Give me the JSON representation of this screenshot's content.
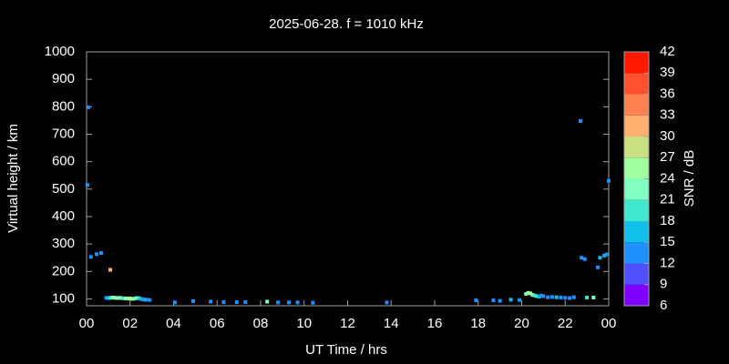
{
  "chart_data": {
    "type": "scatter",
    "title": "2025-06-28. f = 1010 kHz",
    "xlabel": "UT Time / hrs",
    "ylabel": "Virtual height / km",
    "x": [
      0.08,
      0.04,
      0.2,
      0.46,
      0.67,
      1.09,
      0.9,
      1.0,
      1.1,
      1.2,
      1.3,
      1.4,
      1.5,
      1.6,
      1.7,
      1.8,
      1.9,
      2.0,
      2.1,
      2.2,
      2.3,
      2.4,
      2.5,
      2.6,
      2.7,
      2.8,
      2.9,
      4.06,
      4.9,
      5.7,
      6.3,
      6.9,
      7.3,
      8.3,
      8.8,
      9.3,
      9.7,
      10.4,
      13.8,
      17.9,
      18.7,
      19.0,
      19.5,
      19.9,
      20.2,
      20.3,
      20.4,
      20.5,
      20.6,
      20.7,
      20.8,
      20.9,
      21.0,
      21.2,
      21.4,
      21.6,
      21.8,
      22.0,
      22.2,
      22.4,
      22.7,
      22.75,
      22.9,
      23.0,
      23.3,
      23.5,
      23.6,
      23.8,
      23.9,
      24.0
    ],
    "values": [
      798,
      515,
      253,
      263,
      267,
      206,
      104,
      103,
      104,
      105,
      104,
      103,
      104,
      103,
      102,
      102,
      101,
      102,
      100,
      101,
      103,
      103,
      100,
      98,
      97,
      97,
      96,
      87,
      92,
      90,
      88,
      88,
      88,
      90,
      87,
      87,
      87,
      86,
      87,
      95,
      95,
      93,
      97,
      96,
      118,
      122,
      120,
      115,
      112,
      110,
      108,
      112,
      110,
      106,
      107,
      106,
      105,
      104,
      103,
      106,
      748,
      250,
      245,
      105,
      105,
      215,
      250,
      258,
      262,
      530
    ],
    "snr": [
      12,
      12,
      14,
      14,
      14,
      31,
      13,
      17,
      19,
      22,
      23,
      24,
      22,
      21,
      20,
      24,
      25,
      26,
      24,
      23,
      21,
      19,
      15,
      13,
      16,
      14,
      13,
      12,
      13,
      12,
      12,
      12,
      12,
      21,
      12,
      12,
      12,
      12,
      12,
      12,
      12,
      13,
      15,
      14,
      21,
      24,
      25,
      22,
      20,
      18,
      16,
      14,
      13,
      13,
      14,
      15,
      14,
      13,
      12,
      14,
      14,
      14,
      13,
      20,
      22,
      14,
      15,
      16,
      14,
      13
    ],
    "xlim": [
      0,
      24
    ],
    "ylim": [
      75,
      1000
    ],
    "xticks": [
      {
        "value": 0,
        "label": "00"
      },
      {
        "value": 2,
        "label": "02"
      },
      {
        "value": 4,
        "label": "04"
      },
      {
        "value": 6,
        "label": "06"
      },
      {
        "value": 8,
        "label": "08"
      },
      10,
      12,
      14,
      16,
      18,
      20,
      22,
      {
        "value": 24,
        "label": "00"
      }
    ],
    "yticks": [
      100,
      200,
      300,
      400,
      500,
      600,
      700,
      800,
      900,
      1000
    ],
    "colorbar": {
      "label": "SNR / dB",
      "lim": [
        6,
        42
      ],
      "ticks": [
        6,
        9,
        12,
        15,
        18,
        21,
        24,
        27,
        30,
        33,
        36,
        39,
        42
      ],
      "colors": [
        "#8000ff",
        "#5050ff",
        "#2090ff",
        "#10c0e8",
        "#40e8d0",
        "#80ffc0",
        "#a0ffa0",
        "#c8e080",
        "#ffb070",
        "#ff8050",
        "#ff5030",
        "#ff1800"
      ]
    }
  }
}
